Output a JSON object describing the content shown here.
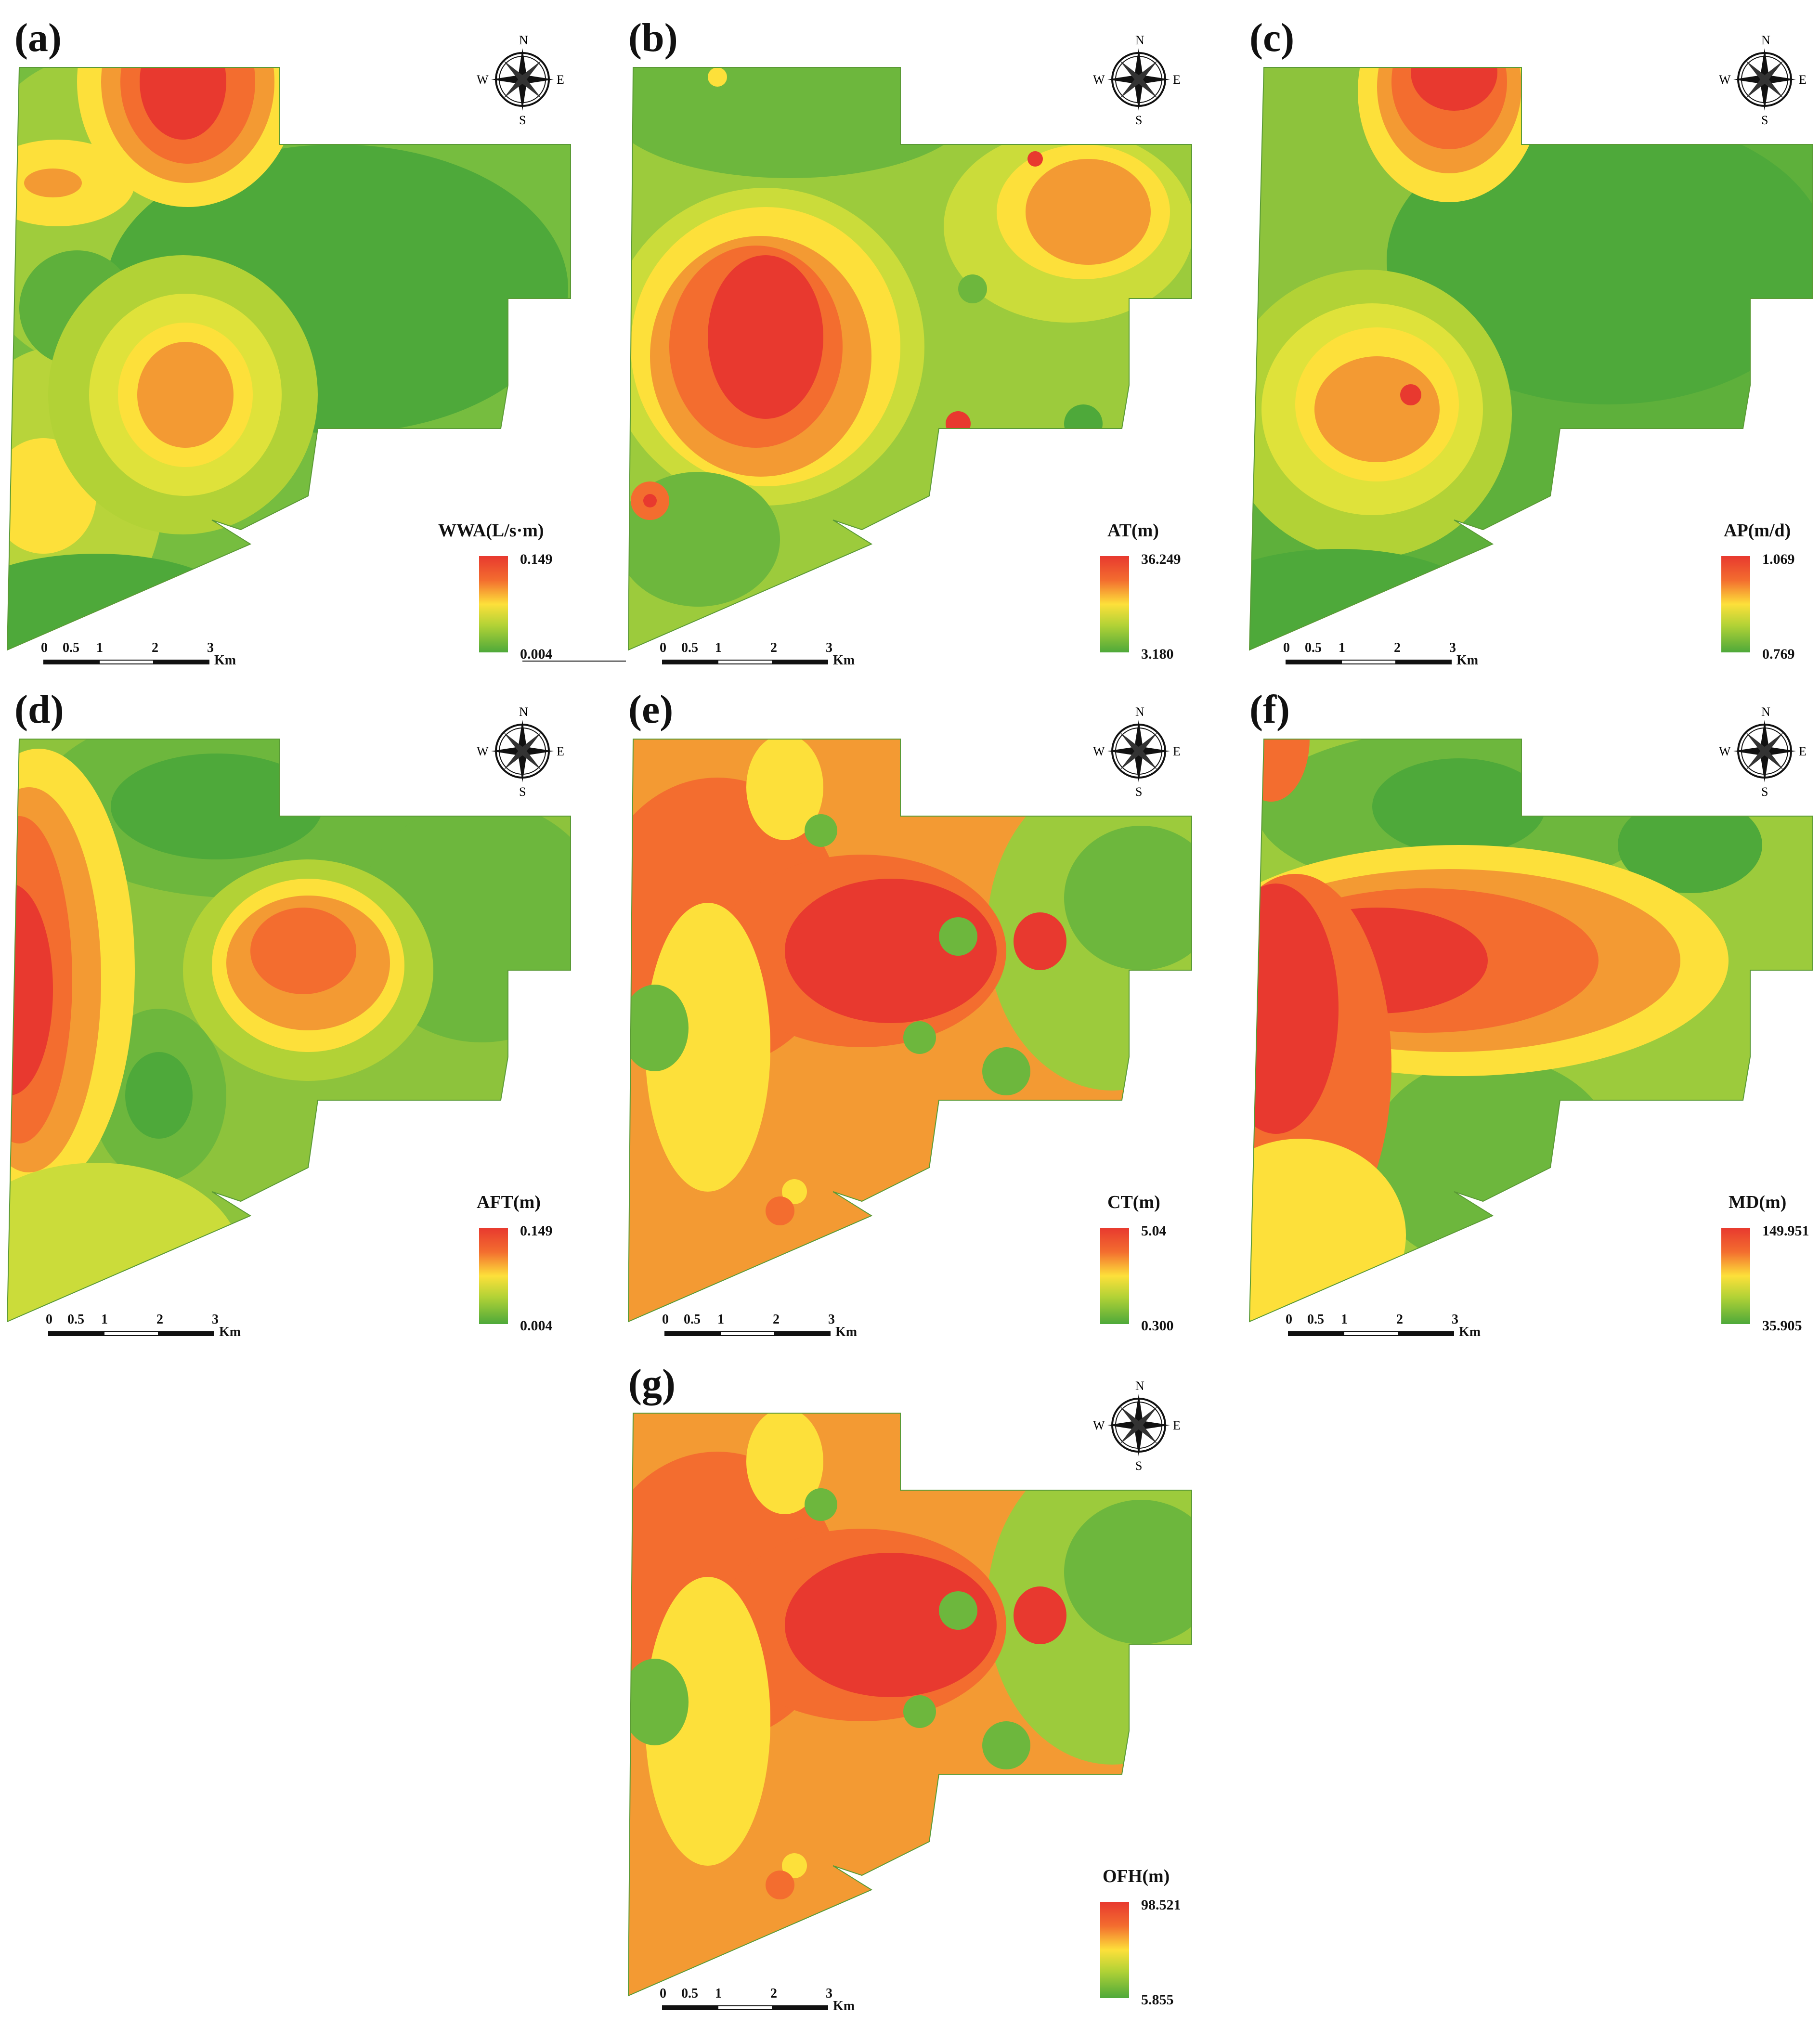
{
  "compass": {
    "n": "N",
    "s": "S",
    "e": "E",
    "w": "W"
  },
  "scale": {
    "ticks": [
      "0",
      "0.5",
      "1",
      "2",
      "3"
    ],
    "unit": "Km"
  },
  "colors": {
    "high": "#e8392f",
    "mid_high": "#f36d2f",
    "mid": "#fde03a",
    "mid_low": "#b2d236",
    "low": "#4ea93a"
  },
  "panels": [
    {
      "label": "(a)",
      "variable": "WWA(L/s·m)",
      "max": "0.149",
      "min": "0.004"
    },
    {
      "label": "(b)",
      "variable": "AT(m)",
      "max": "36.249",
      "min": "3.180"
    },
    {
      "label": "(c)",
      "variable": "AP(m/d)",
      "max": "1.069",
      "min": "0.769"
    },
    {
      "label": "(d)",
      "variable": "AFT(m)",
      "max": "0.149",
      "min": "0.004"
    },
    {
      "label": "(e)",
      "variable": "CT(m)",
      "max": "5.04",
      "min": "0.300"
    },
    {
      "label": "(f)",
      "variable": "MD(m)",
      "max": "149.951",
      "min": "35.905"
    },
    {
      "label": "(g)",
      "variable": "OFH(m)",
      "max": "98.521",
      "min": "5.855"
    }
  ]
}
